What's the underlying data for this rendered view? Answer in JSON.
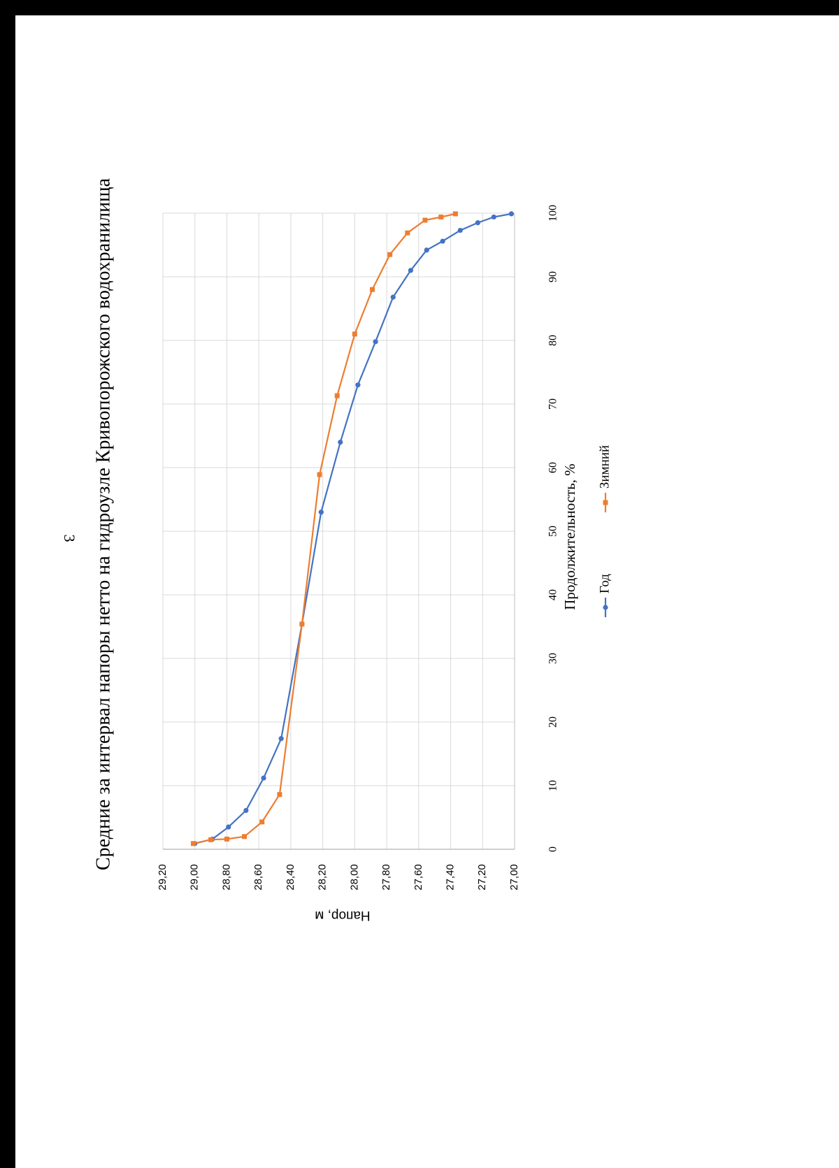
{
  "page": {
    "page_number": "3"
  },
  "chart_data": {
    "type": "line",
    "title": "Средние за интервал напоры нетто на гидроузле Кривопорожского водохранилища",
    "xlabel": "Продолжительность, %",
    "ylabel": "Напор, м",
    "xlim": [
      0,
      100
    ],
    "ylim": [
      27.0,
      29.2
    ],
    "x_ticks": [
      "0",
      "10",
      "20",
      "30",
      "40",
      "50",
      "60",
      "70",
      "80",
      "90",
      "100"
    ],
    "y_ticks": [
      "27,00",
      "27,20",
      "27,40",
      "27,60",
      "27,80",
      "28,00",
      "28,20",
      "28,40",
      "28,60",
      "28,80",
      "29,00",
      "29,20"
    ],
    "grid": true,
    "legend_position": "bottom",
    "series": [
      {
        "name": "Год",
        "color": "#4472C4",
        "marker": "circle",
        "points": [
          [
            0.9,
            29.0
          ],
          [
            1.6,
            28.89
          ],
          [
            3.5,
            28.79
          ],
          [
            6.1,
            28.68
          ],
          [
            11.2,
            28.57
          ],
          [
            17.4,
            28.46
          ],
          [
            35.4,
            28.33
          ],
          [
            53.0,
            28.21
          ],
          [
            64.0,
            28.09
          ],
          [
            73.0,
            27.98
          ],
          [
            79.8,
            27.87
          ],
          [
            86.8,
            27.76
          ],
          [
            91.0,
            27.65
          ],
          [
            94.2,
            27.55
          ],
          [
            95.6,
            27.45
          ],
          [
            97.3,
            27.34
          ],
          [
            98.5,
            27.23
          ],
          [
            99.4,
            27.13
          ],
          [
            99.9,
            27.02
          ]
        ]
      },
      {
        "name": "Зимний",
        "color": "#ED7D31",
        "marker": "square",
        "points": [
          [
            0.9,
            29.01
          ],
          [
            1.5,
            28.9
          ],
          [
            1.6,
            28.8
          ],
          [
            2.0,
            28.69
          ],
          [
            4.3,
            28.58
          ],
          [
            8.6,
            28.47
          ],
          [
            35.4,
            28.33
          ],
          [
            58.9,
            28.22
          ],
          [
            71.3,
            28.11
          ],
          [
            81.0,
            28.0
          ],
          [
            88.0,
            27.89
          ],
          [
            93.5,
            27.78
          ],
          [
            96.9,
            27.67
          ],
          [
            98.9,
            27.56
          ],
          [
            99.4,
            27.46
          ],
          [
            99.9,
            27.37
          ]
        ]
      }
    ]
  }
}
